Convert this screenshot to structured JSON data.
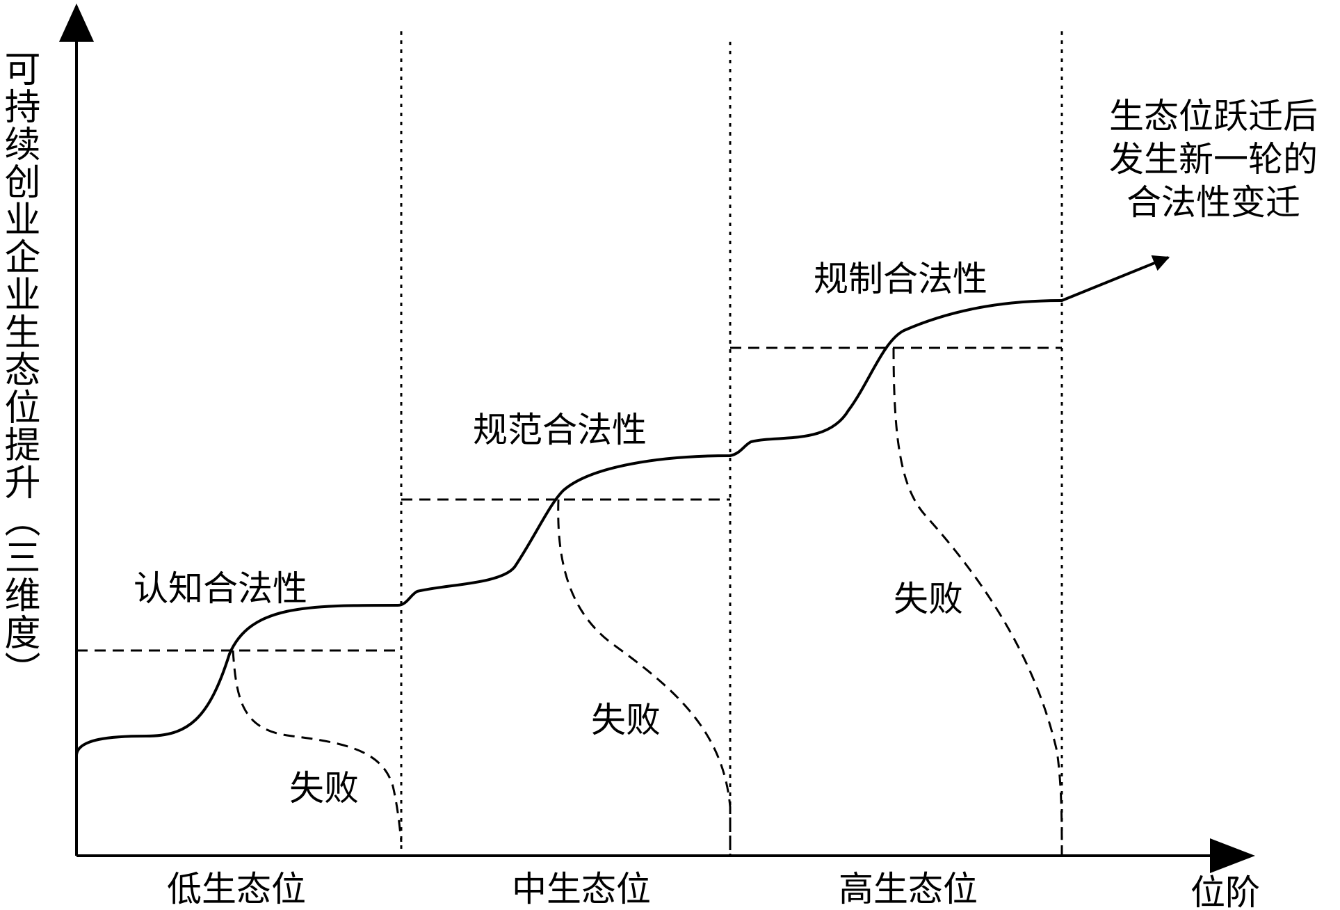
{
  "y_axis_label": "可持续创业企业生态位提升（三维度）",
  "x_axis_label": "位阶",
  "zones": [
    "低生态位",
    "中生态位",
    "高生态位"
  ],
  "stages": [
    "认知合法性",
    "规范合法性",
    "规制合法性"
  ],
  "failure_label": "失败",
  "end_note_lines": [
    "生态位跃迁后",
    "发生新一轮的",
    "合法性变迁"
  ]
}
